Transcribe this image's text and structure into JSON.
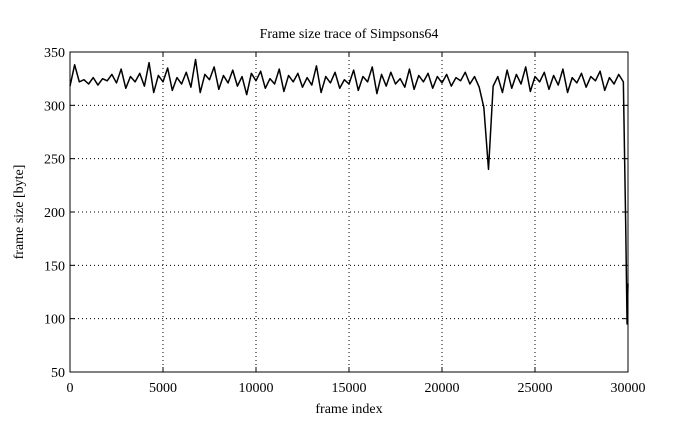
{
  "chart_data": {
    "type": "line",
    "title": "Frame size trace of Simpsons64",
    "xlabel": "frame index",
    "ylabel": "frame size [byte]",
    "x": [
      0,
      250,
      500,
      750,
      1000,
      1250,
      1500,
      1750,
      2000,
      2250,
      2500,
      2750,
      3000,
      3250,
      3500,
      3750,
      4000,
      4250,
      4500,
      4750,
      5000,
      5250,
      5500,
      5750,
      6000,
      6250,
      6500,
      6750,
      7000,
      7250,
      7500,
      7750,
      8000,
      8250,
      8500,
      8750,
      9000,
      9250,
      9500,
      9750,
      10000,
      10250,
      10500,
      10750,
      11000,
      11250,
      11500,
      11750,
      12000,
      12250,
      12500,
      12750,
      13000,
      13250,
      13500,
      13750,
      14000,
      14250,
      14500,
      14750,
      15000,
      15250,
      15500,
      15750,
      16000,
      16250,
      16500,
      16750,
      17000,
      17250,
      17500,
      17750,
      18000,
      18250,
      18500,
      18750,
      19000,
      19250,
      19500,
      19750,
      20000,
      20250,
      20500,
      20750,
      21000,
      21250,
      21500,
      21750,
      22000,
      22250,
      22500,
      22750,
      23000,
      23250,
      23500,
      23750,
      24000,
      24250,
      24500,
      24750,
      25000,
      25250,
      25500,
      25750,
      26000,
      26250,
      26500,
      26750,
      27000,
      27250,
      27500,
      27750,
      28000,
      28250,
      28500,
      28750,
      29000,
      29250,
      29500,
      29750,
      29875,
      29950,
      30000
    ],
    "values": [
      318,
      338,
      322,
      324,
      320,
      326,
      319,
      325,
      323,
      329,
      321,
      334,
      316,
      327,
      322,
      330,
      318,
      340,
      312,
      328,
      322,
      335,
      314,
      326,
      320,
      331,
      317,
      343,
      312,
      329,
      324,
      336,
      315,
      328,
      321,
      333,
      318,
      327,
      310,
      330,
      323,
      332,
      316,
      325,
      320,
      334,
      313,
      328,
      322,
      330,
      317,
      326,
      319,
      337,
      312,
      327,
      321,
      331,
      316,
      324,
      320,
      333,
      314,
      327,
      322,
      336,
      311,
      329,
      318,
      331,
      320,
      325,
      317,
      334,
      315,
      328,
      322,
      330,
      316,
      327,
      321,
      329,
      318,
      326,
      323,
      331,
      320,
      327,
      317,
      298,
      240,
      318,
      327,
      312,
      333,
      316,
      329,
      320,
      336,
      313,
      327,
      322,
      331,
      315,
      328,
      319,
      334,
      312,
      326,
      321,
      330,
      317,
      327,
      323,
      332,
      314,
      326,
      320,
      329,
      322,
      190,
      95,
      133
    ],
    "color": "#000000",
    "xlim": [
      0,
      30000
    ],
    "xticks": [
      0,
      5000,
      10000,
      15000,
      20000,
      25000,
      30000
    ],
    "ylim": [
      50,
      350
    ],
    "yticks": [
      50,
      100,
      150,
      200,
      250,
      300,
      350
    ],
    "grid": true
  }
}
